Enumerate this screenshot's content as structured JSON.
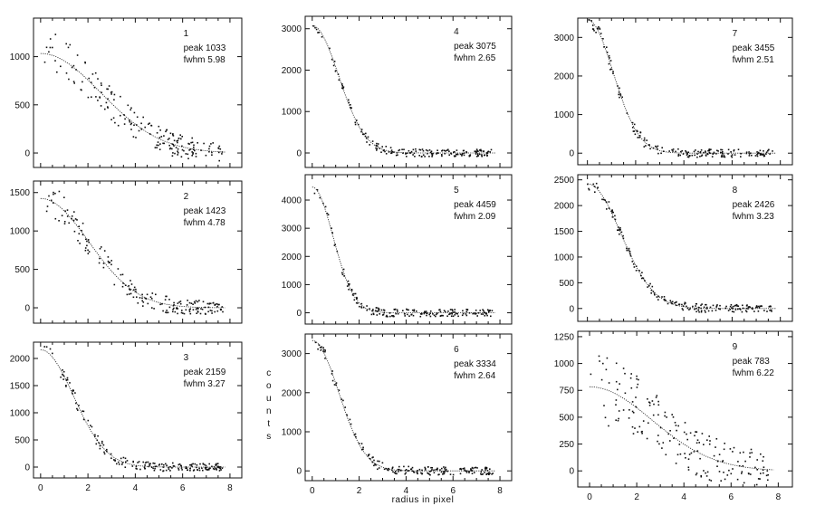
{
  "figure": {
    "xlabel": "radius in pixel",
    "ylabel": "counts"
  },
  "chart_data": [
    {
      "type": "scatter",
      "panel_label": "1",
      "peak_text": "peak 1033",
      "fwhm_text": "fwhm 5.98",
      "peak": 1033,
      "fwhm": 5.98,
      "xlim": [
        -0.3,
        8.5
      ],
      "ylim": [
        -150,
        1400
      ],
      "yticks": [
        0,
        500,
        1000
      ],
      "xticks": [
        0,
        2,
        4,
        6,
        8
      ],
      "show_xtick_labels": false,
      "scatter_amp": 0.22,
      "scatter_falloff": 2.0
    },
    {
      "type": "scatter",
      "panel_label": "4",
      "peak_text": "peak 3075",
      "fwhm_text": "fwhm 2.65",
      "peak": 3075,
      "fwhm": 2.65,
      "xlim": [
        -0.3,
        8.5
      ],
      "ylim": [
        -350,
        3300
      ],
      "yticks": [
        0,
        1000,
        2000,
        3000
      ],
      "xticks": [
        0,
        2,
        4,
        6,
        8
      ],
      "show_xtick_labels": false,
      "scatter_amp": 0.02,
      "scatter_falloff": 1.0
    },
    {
      "type": "scatter",
      "panel_label": "7",
      "peak_text": "peak 3455",
      "fwhm_text": "fwhm 2.51",
      "peak": 3455,
      "fwhm": 2.51,
      "xlim": [
        -0.4,
        8.5
      ],
      "ylim": [
        -300,
        3500
      ],
      "yticks": [
        0,
        1000,
        2000,
        3000
      ],
      "xticks": [
        0,
        2,
        4,
        6,
        8
      ],
      "show_xtick_labels": false,
      "scatter_amp": 0.03,
      "scatter_falloff": 1.0
    },
    {
      "type": "scatter",
      "panel_label": "2",
      "peak_text": "peak 1423",
      "fwhm_text": "fwhm 4.78",
      "peak": 1423,
      "fwhm": 4.78,
      "xlim": [
        -0.3,
        8.5
      ],
      "ylim": [
        -200,
        1650
      ],
      "yticks": [
        0,
        500,
        1000,
        1500
      ],
      "xticks": [
        0,
        2,
        4,
        6,
        8
      ],
      "show_xtick_labels": false,
      "scatter_amp": 0.15,
      "scatter_falloff": 1.5
    },
    {
      "type": "scatter",
      "panel_label": "5",
      "peak_text": "peak 4459",
      "fwhm_text": "fwhm 2.09",
      "peak": 4459,
      "fwhm": 2.09,
      "xlim": [
        -0.3,
        8.5
      ],
      "ylim": [
        -400,
        4900
      ],
      "yticks": [
        0,
        1000,
        2000,
        3000,
        4000
      ],
      "xticks": [
        0,
        2,
        4,
        6,
        8
      ],
      "show_xtick_labels": false,
      "scatter_amp": 0.02,
      "scatter_falloff": 1.0
    },
    {
      "type": "scatter",
      "panel_label": "8",
      "peak_text": "peak 2426",
      "fwhm_text": "fwhm 3.23",
      "peak": 2426,
      "fwhm": 3.23,
      "xlim": [
        -0.4,
        8.5
      ],
      "ylim": [
        -250,
        2600
      ],
      "yticks": [
        0,
        500,
        1000,
        1500,
        2000,
        2500
      ],
      "xticks": [
        0,
        2,
        4,
        6,
        8
      ],
      "show_xtick_labels": false,
      "scatter_amp": 0.03,
      "scatter_falloff": 1.0
    },
    {
      "type": "scatter",
      "panel_label": "3",
      "peak_text": "peak 2159",
      "fwhm_text": "fwhm 3.27",
      "peak": 2159,
      "fwhm": 3.27,
      "xlim": [
        -0.3,
        8.5
      ],
      "ylim": [
        -200,
        2300
      ],
      "yticks": [
        0,
        500,
        1000,
        1500,
        2000
      ],
      "xticks": [
        0,
        2,
        4,
        6,
        8
      ],
      "show_xtick_labels": true,
      "scatter_amp": 0.05,
      "scatter_falloff": 1.0
    },
    {
      "type": "scatter",
      "panel_label": "6",
      "peak_text": "peak 3334",
      "fwhm_text": "fwhm 2.64",
      "peak": 3334,
      "fwhm": 2.64,
      "xlim": [
        -0.3,
        8.5
      ],
      "ylim": [
        -250,
        3500
      ],
      "yticks": [
        0,
        1000,
        2000,
        3000
      ],
      "xticks": [
        0,
        2,
        4,
        6,
        8
      ],
      "show_xtick_labels": true,
      "scatter_amp": 0.03,
      "scatter_falloff": 1.0
    },
    {
      "type": "scatter",
      "panel_label": "9",
      "peak_text": "peak 783",
      "fwhm_text": "fwhm 6.22",
      "peak": 783,
      "fwhm": 6.22,
      "xlim": [
        -0.5,
        8.6
      ],
      "ylim": [
        -150,
        1300
      ],
      "yticks": [
        0,
        250,
        500,
        750,
        1000,
        1250
      ],
      "xticks": [
        0,
        2,
        4,
        6,
        8
      ],
      "show_xtick_labels": true,
      "scatter_amp": 0.45,
      "scatter_falloff": 2.5
    }
  ]
}
